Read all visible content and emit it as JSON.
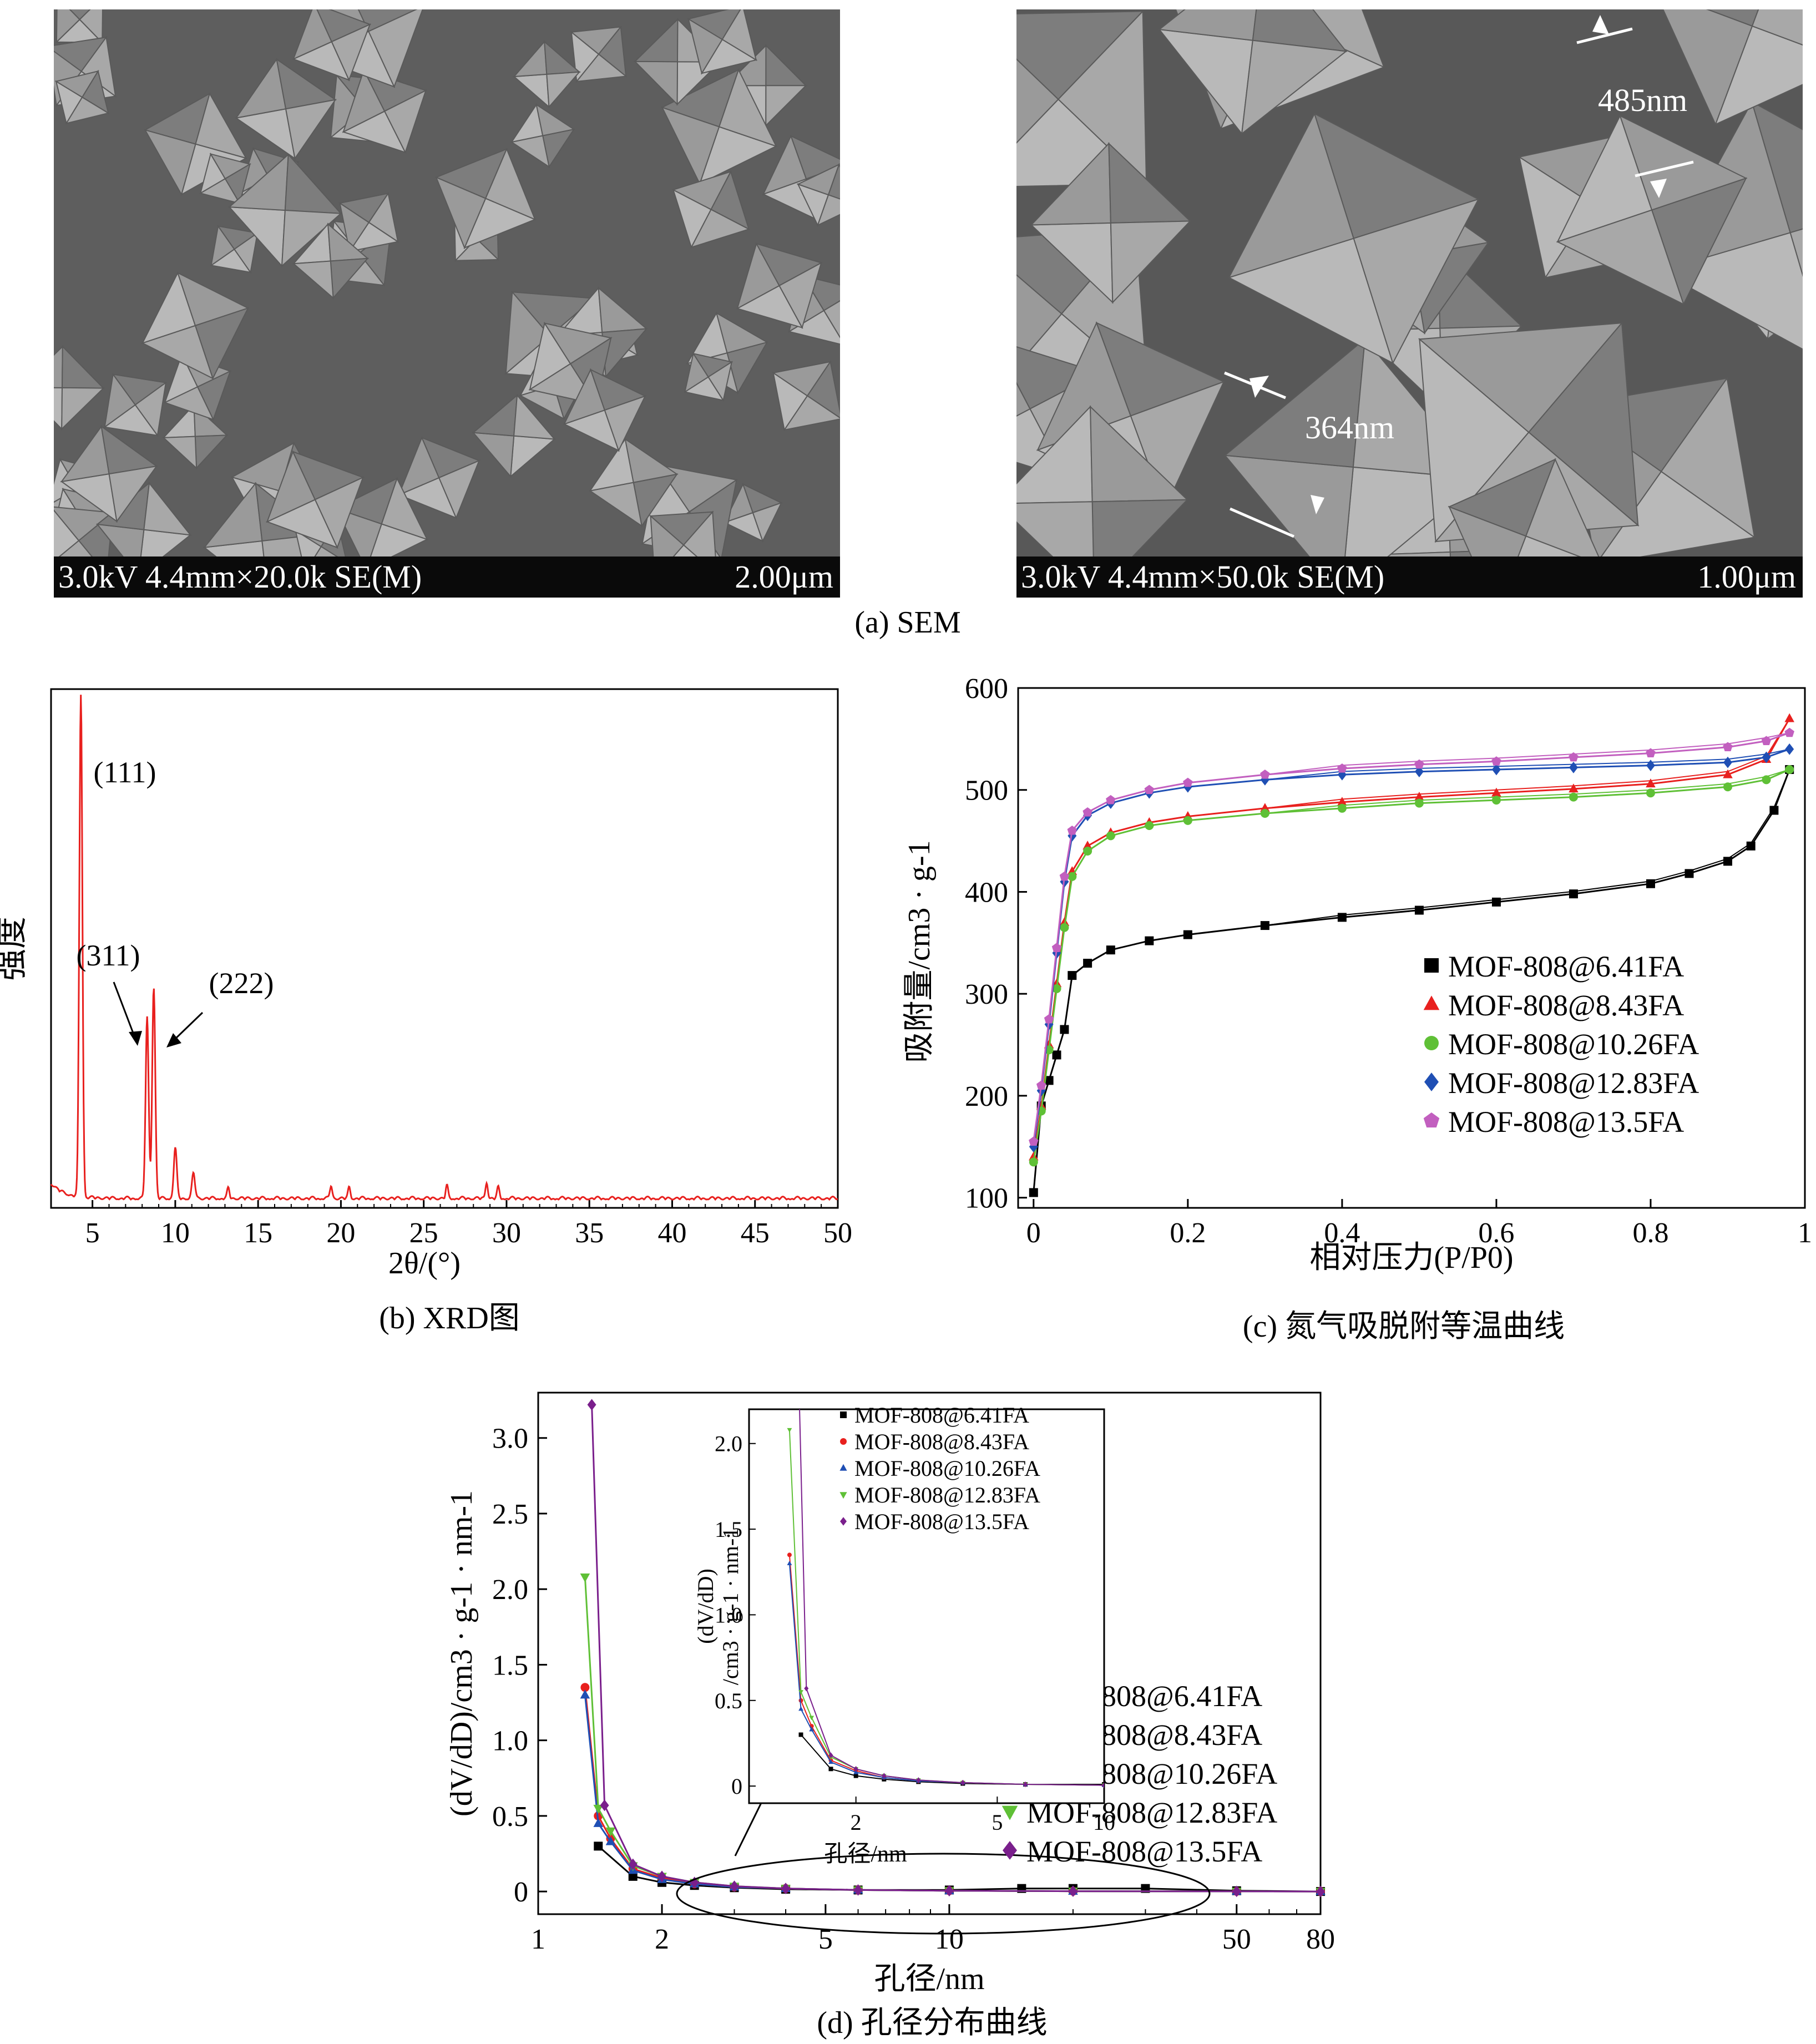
{
  "figure": {
    "sem": {
      "caption": "(a) SEM",
      "left": {
        "info": "3.0kV 4.4mm×20.0k SE(M)",
        "scale": "2.00μm"
      },
      "right": {
        "info": "3.0kV 4.4mm×50.0k SE(M)",
        "scale": "1.00μm",
        "measure_top": "485nm",
        "measure_bottom": "364nm"
      }
    },
    "captions": {
      "b": "(b) XRD图",
      "c": "(c) 氮气吸脱附等温曲线",
      "d": "(d) 孔径分布曲线"
    }
  },
  "chart_data": [
    {
      "id": "xrd",
      "type": "line",
      "xlabel": "2θ/(°)",
      "ylabel": "强度",
      "xlim": [
        2.5,
        50
      ],
      "xticks": [
        5,
        10,
        15,
        20,
        25,
        30,
        35,
        40,
        45,
        50
      ],
      "color": "#e8201e",
      "peaks": [
        {
          "x": 4.3,
          "y": 1.0
        },
        {
          "x": 8.3,
          "y": 0.36
        },
        {
          "x": 8.7,
          "y": 0.42
        },
        {
          "x": 10.0,
          "y": 0.1
        },
        {
          "x": 11.1,
          "y": 0.05
        },
        {
          "x": 13.2,
          "y": 0.02
        },
        {
          "x": 19.4,
          "y": 0.025
        },
        {
          "x": 20.5,
          "y": 0.022
        },
        {
          "x": 26.4,
          "y": 0.025
        },
        {
          "x": 28.8,
          "y": 0.032
        },
        {
          "x": 29.5,
          "y": 0.022
        }
      ],
      "annotations": [
        {
          "text": "(111)",
          "x": 4.3
        },
        {
          "text": "(311)",
          "x": 8.3
        },
        {
          "text": "(222)",
          "x": 8.7
        }
      ]
    },
    {
      "id": "isotherm",
      "type": "line",
      "xlabel": "相对压力(P/P0)",
      "ylabel": "吸附量/cm3 · g-1",
      "xlim": [
        -0.02,
        1.0
      ],
      "ylim": [
        90,
        600
      ],
      "xticks": [
        "0",
        "0.2",
        "0.4",
        "0.6",
        "0.8",
        "1"
      ],
      "yticks": [
        "100",
        "200",
        "300",
        "400",
        "500",
        "600"
      ],
      "legend_position": "lower-right",
      "series": [
        {
          "name": "MOF-808@6.41FA",
          "color": "#000000",
          "marker": "square",
          "x": [
            0.0,
            0.01,
            0.02,
            0.03,
            0.04,
            0.05,
            0.07,
            0.1,
            0.15,
            0.2,
            0.3,
            0.4,
            0.5,
            0.6,
            0.7,
            0.8,
            0.85,
            0.9,
            0.93,
            0.96,
            0.98
          ],
          "y": [
            105,
            190,
            215,
            240,
            265,
            318,
            330,
            343,
            352,
            358,
            367,
            375,
            382,
            390,
            398,
            408,
            418,
            430,
            445,
            480,
            520
          ]
        },
        {
          "name": "MOF-808@8.43FA",
          "color": "#e8201e",
          "marker": "triangle",
          "x": [
            0.0,
            0.01,
            0.02,
            0.03,
            0.04,
            0.05,
            0.07,
            0.1,
            0.15,
            0.2,
            0.3,
            0.4,
            0.5,
            0.6,
            0.7,
            0.8,
            0.9,
            0.95,
            0.98
          ],
          "y": [
            140,
            190,
            250,
            310,
            370,
            420,
            445,
            458,
            468,
            474,
            482,
            488,
            493,
            497,
            501,
            506,
            515,
            530,
            570
          ]
        },
        {
          "name": "MOF-808@10.26FA",
          "color": "#5fc036",
          "marker": "circle",
          "x": [
            0.0,
            0.01,
            0.02,
            0.03,
            0.04,
            0.05,
            0.07,
            0.1,
            0.15,
            0.2,
            0.3,
            0.4,
            0.5,
            0.6,
            0.7,
            0.8,
            0.9,
            0.95,
            0.98
          ],
          "y": [
            135,
            185,
            245,
            305,
            365,
            415,
            440,
            455,
            465,
            470,
            477,
            482,
            487,
            490,
            493,
            497,
            503,
            510,
            520
          ]
        },
        {
          "name": "MOF-808@12.83FA",
          "color": "#1f4fb4",
          "marker": "diamond",
          "x": [
            0.0,
            0.01,
            0.02,
            0.03,
            0.04,
            0.05,
            0.07,
            0.1,
            0.15,
            0.2,
            0.3,
            0.4,
            0.5,
            0.6,
            0.7,
            0.8,
            0.9,
            0.95,
            0.98
          ],
          "y": [
            150,
            205,
            270,
            340,
            410,
            455,
            475,
            487,
            497,
            503,
            510,
            515,
            518,
            520,
            522,
            524,
            527,
            532,
            540
          ]
        },
        {
          "name": "MOF-808@13.5FA",
          "color": "#c25fbf",
          "marker": "pentagon",
          "x": [
            0.0,
            0.01,
            0.02,
            0.03,
            0.04,
            0.05,
            0.07,
            0.1,
            0.15,
            0.2,
            0.3,
            0.4,
            0.5,
            0.6,
            0.7,
            0.8,
            0.9,
            0.95,
            0.98
          ],
          "y": [
            155,
            210,
            275,
            345,
            415,
            460,
            478,
            490,
            500,
            507,
            515,
            521,
            525,
            528,
            532,
            536,
            542,
            548,
            556
          ]
        }
      ]
    },
    {
      "id": "pore",
      "type": "line",
      "xlabel": "孔径/nm",
      "ylabel": "(dV/dD)/cm3 · g-1 · nm-1",
      "xscale": "log",
      "xlim": [
        1,
        80
      ],
      "ylim": [
        -0.15,
        3.3
      ],
      "xticks": [
        "1",
        "2",
        "5",
        "10",
        "50",
        "80"
      ],
      "yticks": [
        "0",
        "0.5",
        "1.0",
        "1.5",
        "2.0",
        "2.5",
        "3.0"
      ],
      "legend_position": "right",
      "series": [
        {
          "name": "MOF-808@6.41FA",
          "color": "#000000",
          "marker": "square",
          "x": [
            1.4,
            1.7,
            2.0,
            2.4,
            3.0,
            4.0,
            6.0,
            10,
            15,
            20,
            30,
            50,
            80
          ],
          "y": [
            0.3,
            0.1,
            0.06,
            0.04,
            0.025,
            0.015,
            0.01,
            0.01,
            0.02,
            0.02,
            0.02,
            0.005,
            0.0
          ]
        },
        {
          "name": "MOF-808@8.43FA",
          "color": "#e8201e",
          "marker": "circle",
          "x": [
            1.3,
            1.4,
            1.5,
            1.7,
            2.0,
            2.4,
            3.0,
            4.0,
            6.0,
            10,
            20,
            50,
            80
          ],
          "y": [
            1.35,
            0.5,
            0.35,
            0.15,
            0.09,
            0.05,
            0.03,
            0.02,
            0.01,
            0.005,
            0.002,
            0.001,
            0.0
          ]
        },
        {
          "name": "MOF-808@10.26FA",
          "color": "#1f4fb4",
          "marker": "triangle",
          "x": [
            1.3,
            1.4,
            1.5,
            1.7,
            2.0,
            2.4,
            3.0,
            4.0,
            6.0,
            10,
            20,
            50,
            80
          ],
          "y": [
            1.3,
            0.45,
            0.33,
            0.14,
            0.08,
            0.05,
            0.03,
            0.02,
            0.01,
            0.005,
            0.002,
            0.001,
            0.0
          ]
        },
        {
          "name": "MOF-808@12.83FA",
          "color": "#5fc036",
          "marker": "triangle-down",
          "x": [
            1.3,
            1.4,
            1.5,
            1.7,
            2.0,
            2.4,
            3.0,
            4.0,
            6.0,
            10,
            20,
            50,
            80
          ],
          "y": [
            2.08,
            0.55,
            0.4,
            0.17,
            0.1,
            0.06,
            0.035,
            0.02,
            0.01,
            0.005,
            0.002,
            0.001,
            0.0
          ]
        },
        {
          "name": "MOF-808@13.5FA",
          "color": "#7a1f8c",
          "marker": "diamond",
          "x": [
            1.35,
            1.45,
            1.7,
            2.0,
            2.4,
            3.0,
            4.0,
            6.0,
            10,
            20,
            50,
            80
          ],
          "y": [
            3.22,
            0.57,
            0.18,
            0.1,
            0.06,
            0.035,
            0.02,
            0.01,
            0.005,
            0.002,
            0.001,
            0.0
          ]
        }
      ],
      "inset": {
        "xlabel": "孔径/nm",
        "ylabel_line1": "(dV/dD)",
        "ylabel_line2": "/cm3 · g-1 · nm-1",
        "xlim": [
          1,
          10
        ],
        "ylim": [
          -0.1,
          2.2
        ],
        "xticks": [
          "2",
          "5",
          "10"
        ],
        "yticks": [
          "0",
          "0.5",
          "1.0",
          "1.5",
          "2.0"
        ]
      }
    }
  ]
}
